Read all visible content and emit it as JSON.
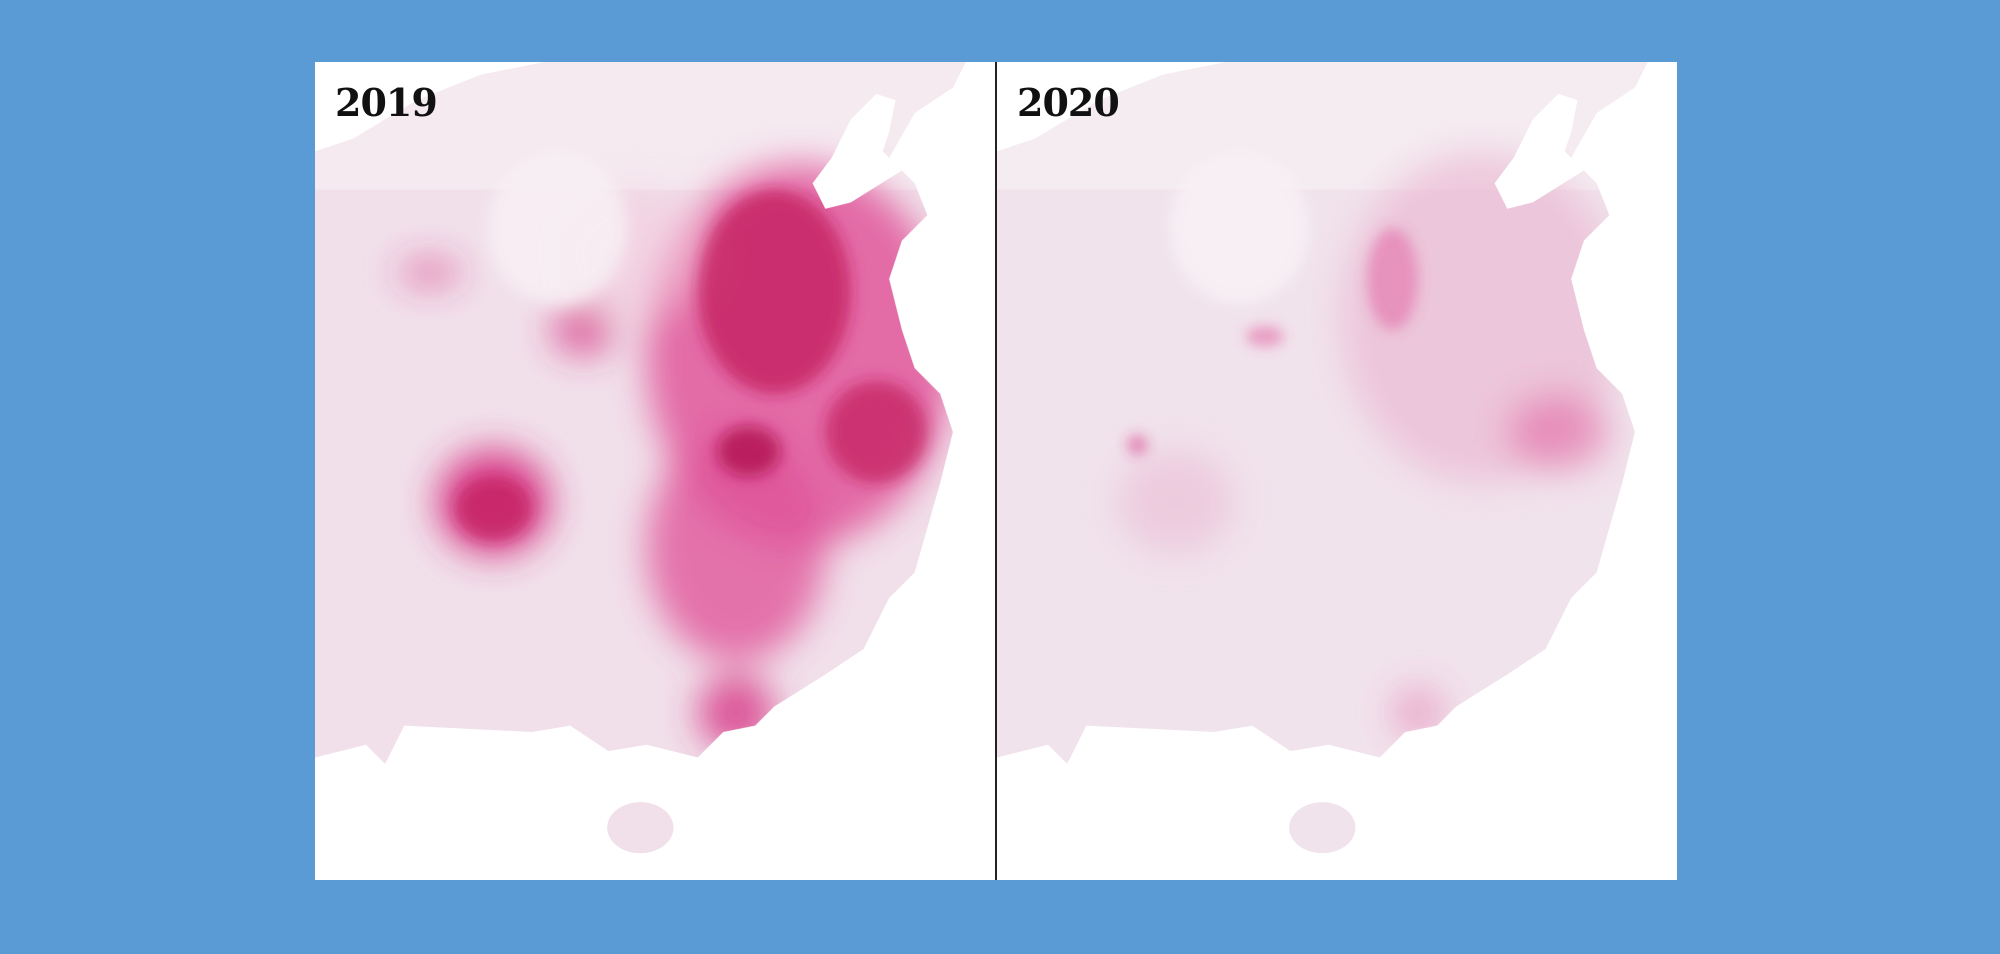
{
  "panels": [
    {
      "label": "2019"
    },
    {
      "label": "2020"
    }
  ],
  "colors": {
    "background": "#5b9bd5",
    "land_base": "#f1e0ea",
    "pollution_high": "#c2185b",
    "pollution_mid": "#e0559a",
    "water": "#ffffff"
  }
}
